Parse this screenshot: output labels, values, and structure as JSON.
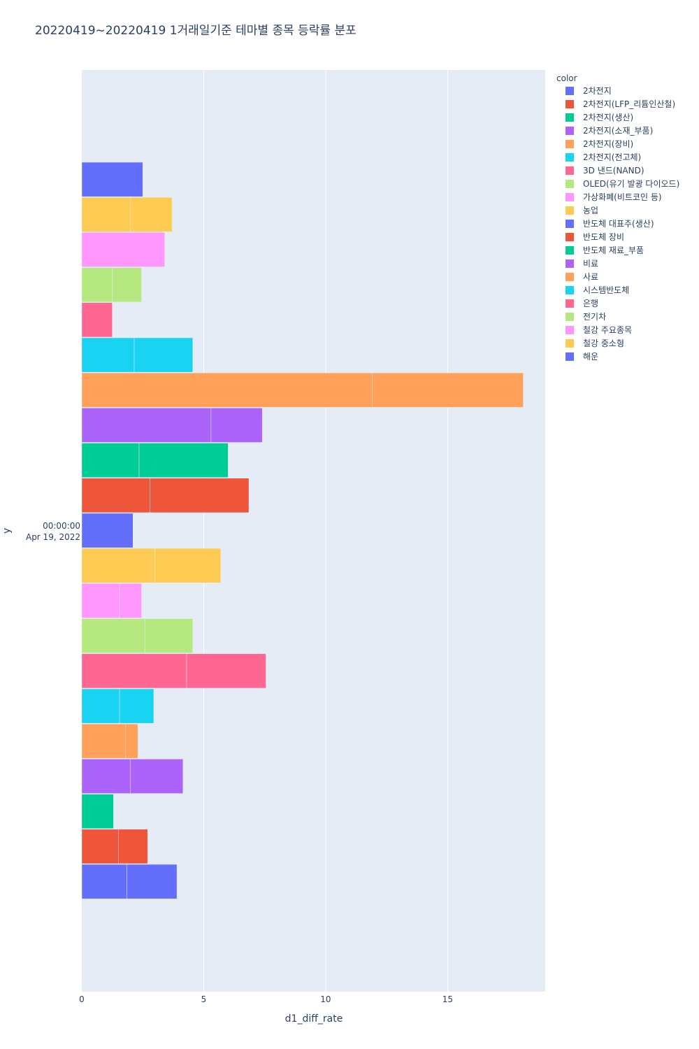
{
  "chart_data": {
    "type": "bar",
    "orientation": "horizontal",
    "barmode": "stack",
    "title": "20220419~20220419 1거래일기준 테마별 종목 등락률 분포",
    "xlabel": "d1_diff_rate",
    "ylabel": "y",
    "xlim": [
      0,
      19
    ],
    "x_ticks": [
      0,
      5,
      10,
      15
    ],
    "y_tick_label_line1": "00:00:00",
    "y_tick_label_line2": "Apr 19, 2022",
    "legend_title": "color",
    "colors": [
      "#636efa",
      "#EF553B",
      "#00cc96",
      "#ab63fa",
      "#FFA15A",
      "#19d3f3",
      "#FF6692",
      "#B6E880",
      "#FF97FF",
      "#FECB52"
    ],
    "series": [
      {
        "name": "2차전지",
        "segments": [
          1.85,
          2.05
        ]
      },
      {
        "name": "2차전지(LFP_리튬인산철)",
        "segments": [
          1.5,
          1.2
        ]
      },
      {
        "name": "2차전지(생산)",
        "segments": [
          1.3
        ]
      },
      {
        "name": "2차전지(소재_부품)",
        "segments": [
          2.0,
          2.15
        ]
      },
      {
        "name": "2차전지(장비)",
        "segments": [
          1.8,
          0.5
        ]
      },
      {
        "name": "2차전지(전고체)",
        "segments": [
          1.55,
          1.4
        ]
      },
      {
        "name": "3D 낸드(NAND)",
        "segments": [
          4.3,
          3.25
        ]
      },
      {
        "name": "OLED(유기 발광 다이오드)",
        "segments": [
          2.6,
          1.95
        ]
      },
      {
        "name": "가상화폐(비트코인 등)",
        "segments": [
          1.55,
          0.9
        ]
      },
      {
        "name": "농업",
        "segments": [
          3.0,
          2.7
        ]
      },
      {
        "name": "반도체 대표주(생산)",
        "segments": [
          2.1
        ]
      },
      {
        "name": "반도체 장비",
        "segments": [
          2.8,
          4.05
        ]
      },
      {
        "name": "반도체 재료_부품",
        "segments": [
          2.35,
          3.65
        ]
      },
      {
        "name": "비료",
        "segments": [
          5.3,
          2.1
        ]
      },
      {
        "name": "사료",
        "segments": [
          11.9,
          6.2
        ]
      },
      {
        "name": "시스템반도체",
        "segments": [
          2.15,
          2.4
        ]
      },
      {
        "name": "은행",
        "segments": [
          1.25
        ]
      },
      {
        "name": "전기차",
        "segments": [
          1.25,
          1.2
        ]
      },
      {
        "name": "철강 주요종목",
        "segments": [
          3.4
        ]
      },
      {
        "name": "철강 중소형",
        "segments": [
          2.0,
          1.7
        ]
      },
      {
        "name": "해운",
        "segments": [
          2.5
        ]
      }
    ]
  }
}
